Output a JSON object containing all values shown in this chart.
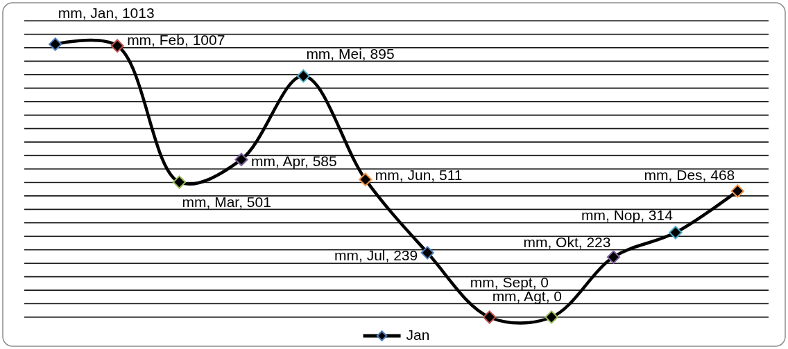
{
  "chart_data": {
    "type": "line",
    "categories": [
      null,
      null,
      null,
      null,
      null,
      null,
      null,
      null,
      null,
      null,
      null,
      null
    ],
    "series": [
      {
        "name": "Jan",
        "color": "#000000",
        "colors": [
          "#4f81bd",
          "#c0504d",
          "#9bbb59",
          "#8064a2",
          "#4bacc6",
          "#f79646",
          "#4f81bd",
          "#c0504d",
          "#9bbb59",
          "#8064a2",
          "#4bacc6",
          "#f79646"
        ],
        "values": [
          1013,
          1007,
          501,
          585,
          895,
          511,
          239,
          0,
          0,
          223,
          314,
          468
        ],
        "value_labels": [
          "mm, Jan, 1013",
          "mm, Feb, 1007",
          "mm, Mar, 501",
          "mm, Apr, 585",
          "mm, Mei, 895",
          "mm, Jun, 511",
          "mm, Jul, 239",
          "mm, Agt, 0",
          "mm, Sept, 0",
          "mm, Okt, 223",
          "mm, Nop, 314",
          "mm, Des, 468"
        ]
      }
    ],
    "marker": "diamond",
    "ylim": [
      0,
      1100
    ],
    "yticks": [
      {
        "value": 0,
        "label": null
      },
      {
        "value": 50,
        "label": null
      },
      {
        "value": 100,
        "label": null
      },
      {
        "value": 150,
        "label": null
      },
      {
        "value": 200,
        "label": null
      },
      {
        "value": 250,
        "label": null
      },
      {
        "value": 300,
        "label": null
      },
      {
        "value": 350,
        "label": null
      },
      {
        "value": 400,
        "label": null
      },
      {
        "value": 450,
        "label": null
      },
      {
        "value": 500,
        "label": null
      },
      {
        "value": 550,
        "label": null
      },
      {
        "value": 600,
        "label": null
      },
      {
        "value": 650,
        "label": null
      },
      {
        "value": 700,
        "label": null
      },
      {
        "value": 750,
        "label": null
      },
      {
        "value": 800,
        "label": null
      },
      {
        "value": 850,
        "label": null
      },
      {
        "value": 900,
        "label": null
      },
      {
        "value": 950,
        "label": null
      },
      {
        "value": 1000,
        "label": null
      },
      {
        "value": 1050,
        "label": null
      },
      {
        "value": 1100,
        "label": null
      }
    ],
    "grid": "y",
    "legend": "bottom"
  }
}
